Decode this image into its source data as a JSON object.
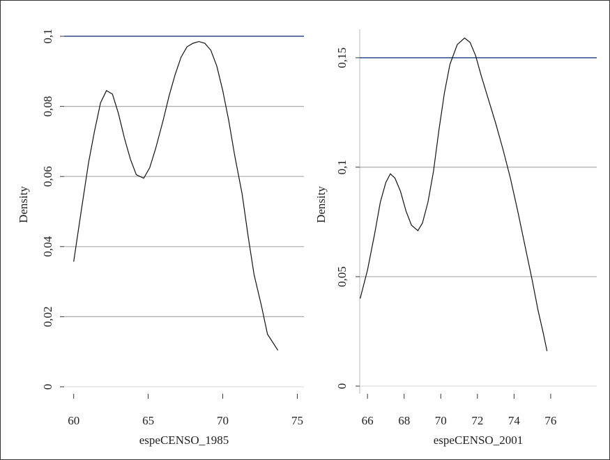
{
  "chart_data": [
    {
      "type": "line",
      "x_label": "espeCENSO_1985",
      "y_label": "Density",
      "xlim": [
        59.5,
        75.4
      ],
      "xticks": [
        60,
        65,
        70,
        75
      ],
      "ylim": [
        -0.002,
        0.102
      ],
      "yticks": [
        0,
        {
          "value": 0.02,
          "label": "0,02"
        },
        {
          "value": 0.04,
          "label": "0,04"
        },
        {
          "value": 0.06,
          "label": "0,06"
        },
        {
          "value": 0.08,
          "label": "0,08"
        },
        {
          "value": 0.1,
          "label": "0,1"
        }
      ],
      "grid": true,
      "grid_color": "#aaaaaa",
      "reference_line": {
        "value": 0.1,
        "color": "#2b4a8b"
      },
      "series": [
        {
          "color": "#111111",
          "x": [
            60.0,
            60.5,
            61.0,
            61.4,
            61.8,
            62.2,
            62.6,
            63.0,
            63.4,
            63.8,
            64.2,
            64.7,
            65.1,
            65.5,
            66.0,
            66.4,
            66.8,
            67.2,
            67.6,
            68.0,
            68.4,
            68.8,
            69.2,
            69.6,
            70.0,
            70.4,
            70.8,
            71.3,
            71.7,
            72.1,
            72.6,
            73.0,
            73.7
          ],
          "values": [
            0.0357,
            0.05,
            0.064,
            0.073,
            0.081,
            0.0845,
            0.0835,
            0.078,
            0.071,
            0.065,
            0.0605,
            0.0595,
            0.0625,
            0.068,
            0.076,
            0.083,
            0.089,
            0.094,
            0.097,
            0.098,
            0.0985,
            0.098,
            0.096,
            0.0915,
            0.0845,
            0.076,
            0.066,
            0.055,
            0.043,
            0.032,
            0.023,
            0.015,
            0.0104
          ]
        }
      ]
    },
    {
      "type": "line",
      "x_label": "espeCENSO_2001",
      "y_label": "Density",
      "xlim": [
        65.5,
        78.4
      ],
      "xticks": [
        66,
        68,
        70,
        72,
        74,
        76
      ],
      "ylim": [
        -0.0035,
        0.163
      ],
      "yticks": [
        0,
        {
          "value": 0.05,
          "label": "0,05"
        },
        {
          "value": 0.1,
          "label": "0,1"
        },
        {
          "value": 0.15,
          "label": "0,15"
        }
      ],
      "grid": true,
      "grid_color": "#aaaaaa",
      "reference_line": {
        "value": 0.15,
        "color": "#2b4a8b"
      },
      "series": [
        {
          "color": "#111111",
          "x": [
            65.6,
            66.0,
            66.4,
            66.7,
            67.0,
            67.25,
            67.5,
            67.8,
            68.1,
            68.4,
            68.75,
            69.0,
            69.3,
            69.6,
            69.9,
            70.2,
            70.5,
            70.9,
            71.3,
            71.6,
            71.9,
            72.2,
            72.6,
            73.0,
            73.4,
            73.8,
            74.2,
            74.6,
            75.0,
            75.3,
            75.6,
            75.8
          ],
          "values": [
            0.04,
            0.053,
            0.07,
            0.084,
            0.093,
            0.097,
            0.095,
            0.089,
            0.08,
            0.0735,
            0.071,
            0.0745,
            0.084,
            0.098,
            0.117,
            0.134,
            0.147,
            0.156,
            0.159,
            0.157,
            0.151,
            0.142,
            0.131,
            0.12,
            0.108,
            0.095,
            0.08,
            0.064,
            0.048,
            0.035,
            0.024,
            0.016
          ]
        }
      ]
    }
  ]
}
